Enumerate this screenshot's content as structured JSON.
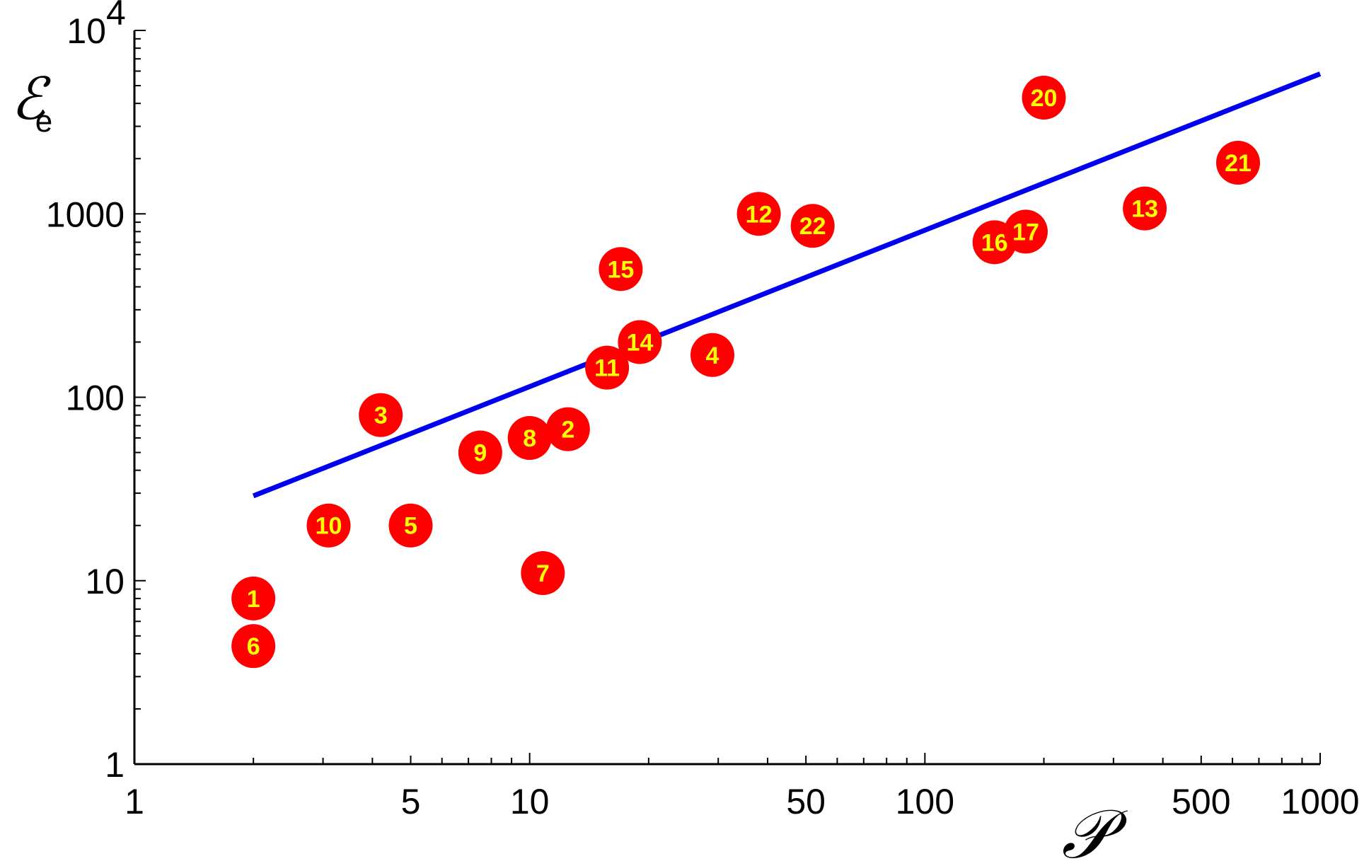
{
  "chart_data": {
    "type": "scatter",
    "title": "",
    "xlabel": "𝒫",
    "ylabel": "ℰ",
    "ylabel_subscript": "e",
    "x_scale": "log",
    "y_scale": "log",
    "xlim": [
      1,
      1000
    ],
    "ylim": [
      1,
      10000
    ],
    "x_ticks": [
      {
        "value": 1,
        "label": "1"
      },
      {
        "value": 5,
        "label": "5"
      },
      {
        "value": 10,
        "label": "10"
      },
      {
        "value": 50,
        "label": "50"
      },
      {
        "value": 100,
        "label": "100"
      },
      {
        "value": 500,
        "label": "500"
      },
      {
        "value": 1000,
        "label": "1000"
      }
    ],
    "y_ticks": [
      {
        "value": 1,
        "label": "1"
      },
      {
        "value": 10,
        "label": "10"
      },
      {
        "value": 100,
        "label": "100"
      },
      {
        "value": 1000,
        "label": "1000"
      },
      {
        "value": 10000,
        "label": "10",
        "exponent": "4"
      }
    ],
    "grid": false,
    "colors": {
      "marker_fill": "#ff0000",
      "marker_label": "#ffff00",
      "fit_line": "#0000ee",
      "axis": "#000000"
    },
    "points": [
      {
        "label": "1",
        "x": 2,
        "y": 8
      },
      {
        "label": "2",
        "x": 12.5,
        "y": 67
      },
      {
        "label": "3",
        "x": 4.2,
        "y": 80
      },
      {
        "label": "4",
        "x": 29,
        "y": 170
      },
      {
        "label": "5",
        "x": 5,
        "y": 20
      },
      {
        "label": "6",
        "x": 2,
        "y": 4.4
      },
      {
        "label": "7",
        "x": 10.8,
        "y": 11
      },
      {
        "label": "8",
        "x": 10,
        "y": 60
      },
      {
        "label": "9",
        "x": 7.5,
        "y": 50
      },
      {
        "label": "10",
        "x": 3.1,
        "y": 20
      },
      {
        "label": "11",
        "x": 15.7,
        "y": 145
      },
      {
        "label": "12",
        "x": 38,
        "y": 1000
      },
      {
        "label": "13",
        "x": 360,
        "y": 1070
      },
      {
        "label": "14",
        "x": 19,
        "y": 200
      },
      {
        "label": "15",
        "x": 17,
        "y": 500
      },
      {
        "label": "16",
        "x": 150,
        "y": 700
      },
      {
        "label": "17",
        "x": 180,
        "y": 800
      },
      {
        "label": "20",
        "x": 200,
        "y": 4300
      },
      {
        "label": "21",
        "x": 620,
        "y": 1900
      },
      {
        "label": "22",
        "x": 52,
        "y": 860
      }
    ],
    "fit_line": {
      "x": [
        2,
        1000
      ],
      "y": [
        29,
        5800
      ]
    }
  }
}
